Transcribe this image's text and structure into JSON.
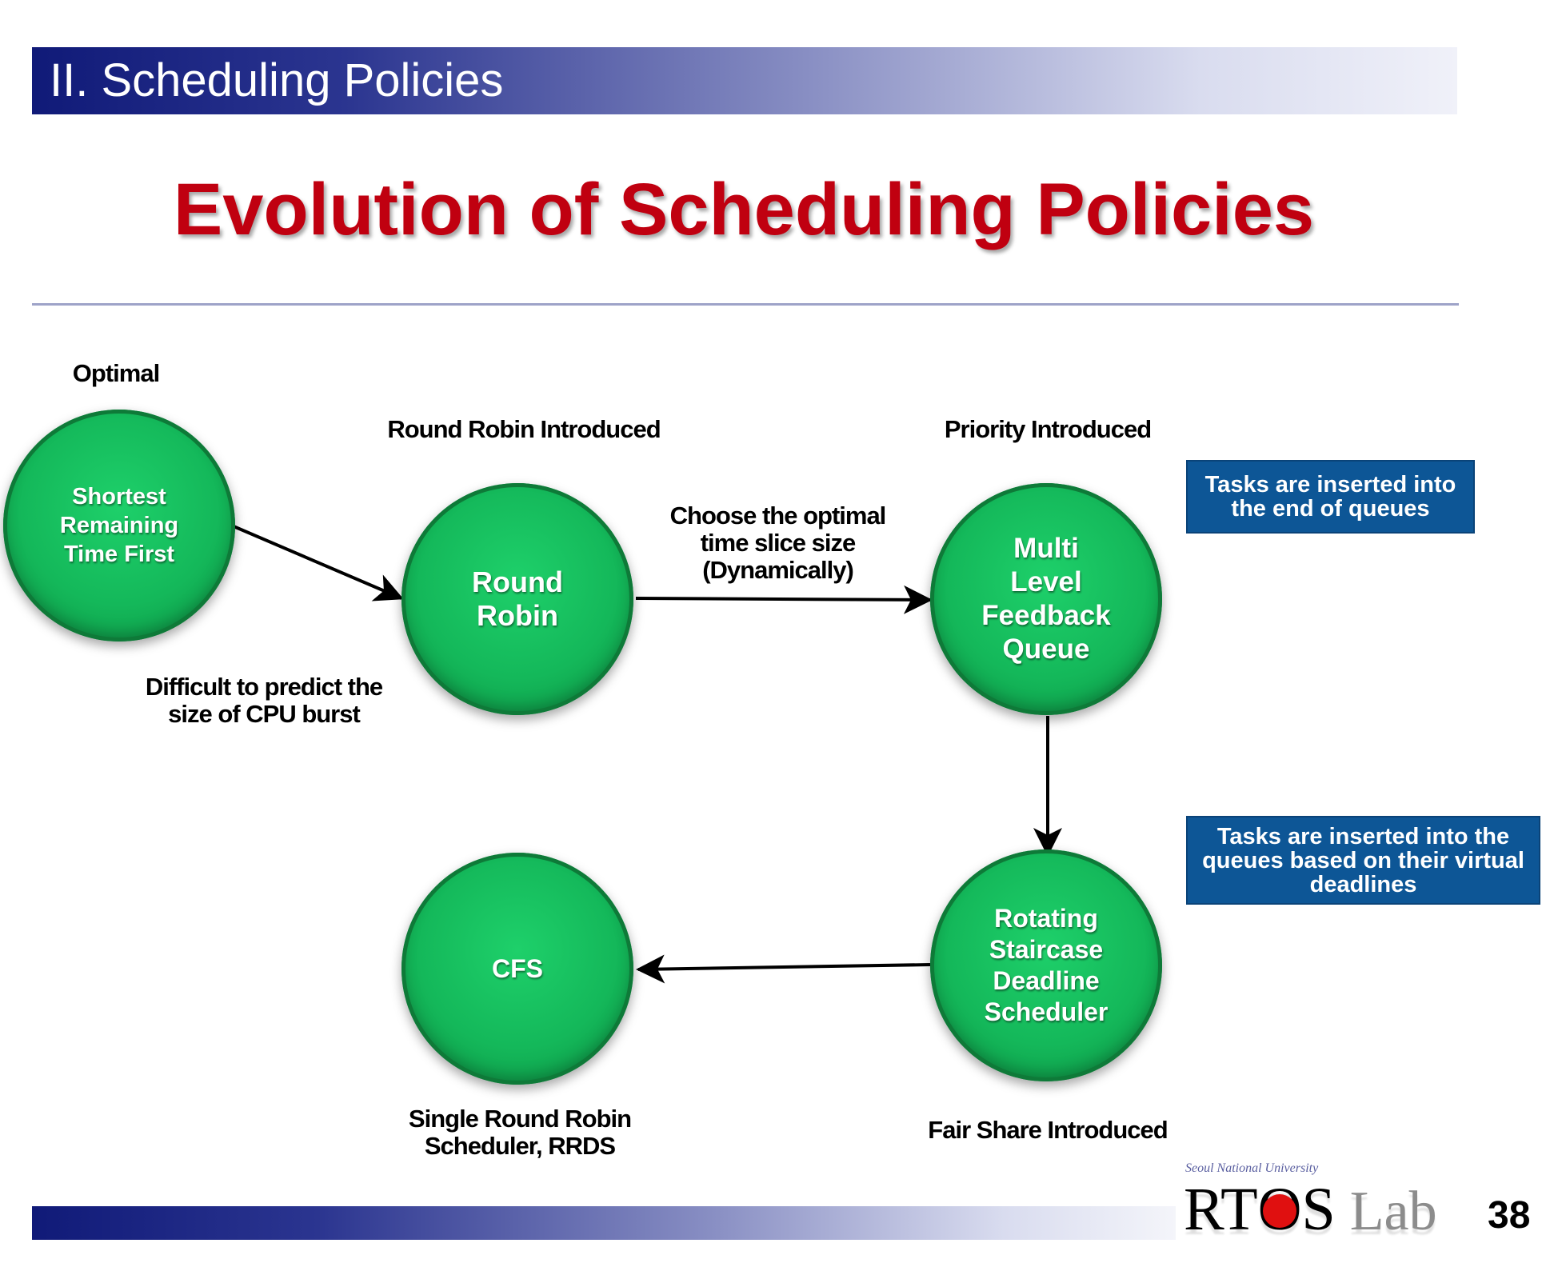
{
  "header": {
    "section": "II. Scheduling Policies"
  },
  "title": "Evolution of Scheduling Policies",
  "nodes": {
    "srtf": "Shortest\nRemaining\nTime First",
    "rr": "Round\nRobin",
    "mlfq": "Multi\nLevel\nFeedback\nQueue",
    "rsdl": "Rotating\nStaircase\nDeadline\nScheduler",
    "cfs": "CFS"
  },
  "labels": {
    "optimal": "Optimal",
    "rr_introduced": "Round Robin Introduced",
    "priority_introduced": "Priority Introduced",
    "choose_slice": "Choose the optimal\ntime slice size\n(Dynamically)",
    "difficult": "Difficult to predict the\nsize of CPU burst",
    "single_rr": "Single Round Robin\nScheduler, RRDS",
    "fair_share": "Fair Share Introduced"
  },
  "notes": {
    "end_of_queues": "Tasks are inserted into\nthe end of queues",
    "virtual_deadlines": "Tasks are inserted into the\nqueues based on their virtual\ndeadlines"
  },
  "footer": {
    "logo_subtitle": "Seoul National University",
    "logo_main_pre": "RT",
    "logo_main_o": "O",
    "logo_main_post": "S",
    "logo_lab": "Lab",
    "page_number": "38"
  },
  "colors": {
    "node_green": "#14b85a",
    "title_red": "#c00010",
    "note_blue": "#0d5696",
    "header_navy": "#101a78"
  }
}
